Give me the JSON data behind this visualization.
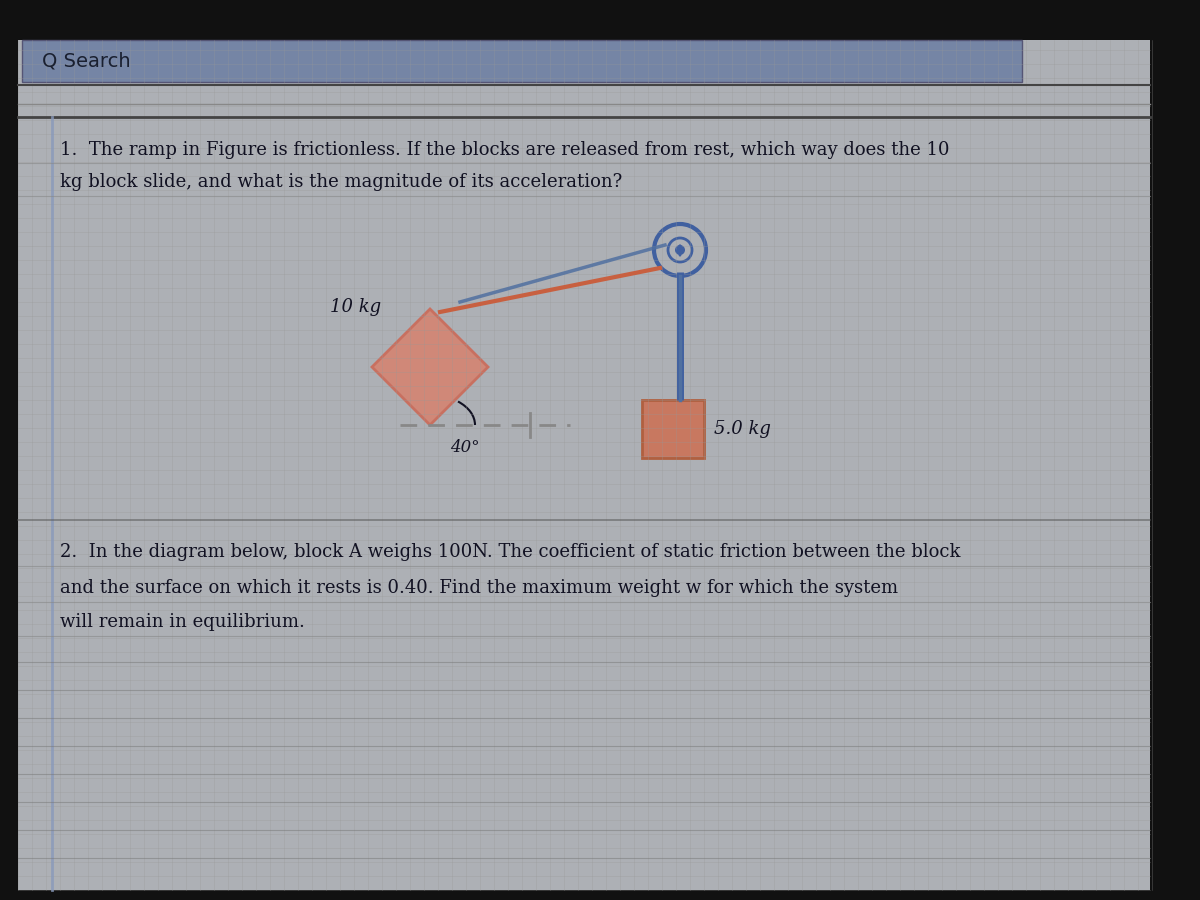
{
  "bg_outer": "#111111",
  "bg_main": "#aaaaaa",
  "bg_grid": "#b0b0b0",
  "search_bar_color": "#7080a0",
  "search_text": "Q Search",
  "search_text_color": "#1a2030",
  "text_color": "#111122",
  "line_color": "#666666",
  "q1_line1": "1.  The ramp in Figure is frictionless. If the blocks are released from rest, which way does the 10",
  "q1_line2": "kg block slide, and what is the magnitude of its acceleration?",
  "q2_line1": "2.  In the diagram below, block A weighs 100N. The coefficient of static friction between the block",
  "q2_line2": "and the surface on which it rests is 0.40. Find the maximum weight w for which the system",
  "q2_line3": "will remain in equilibrium.",
  "block10_label": "10 kg",
  "block5_label": "5.0 kg",
  "angle_label": "40°",
  "rope_orange": "#c86040",
  "rope_blue": "#5070a0",
  "pulley_color": "#4060a0",
  "block10_fill": "#d08878",
  "block10_edge": "#c87060",
  "block5_fill": "#c87860",
  "block5_edge": "#b06040",
  "dashed_color": "#888888",
  "margin_line_color": "#6688aa"
}
